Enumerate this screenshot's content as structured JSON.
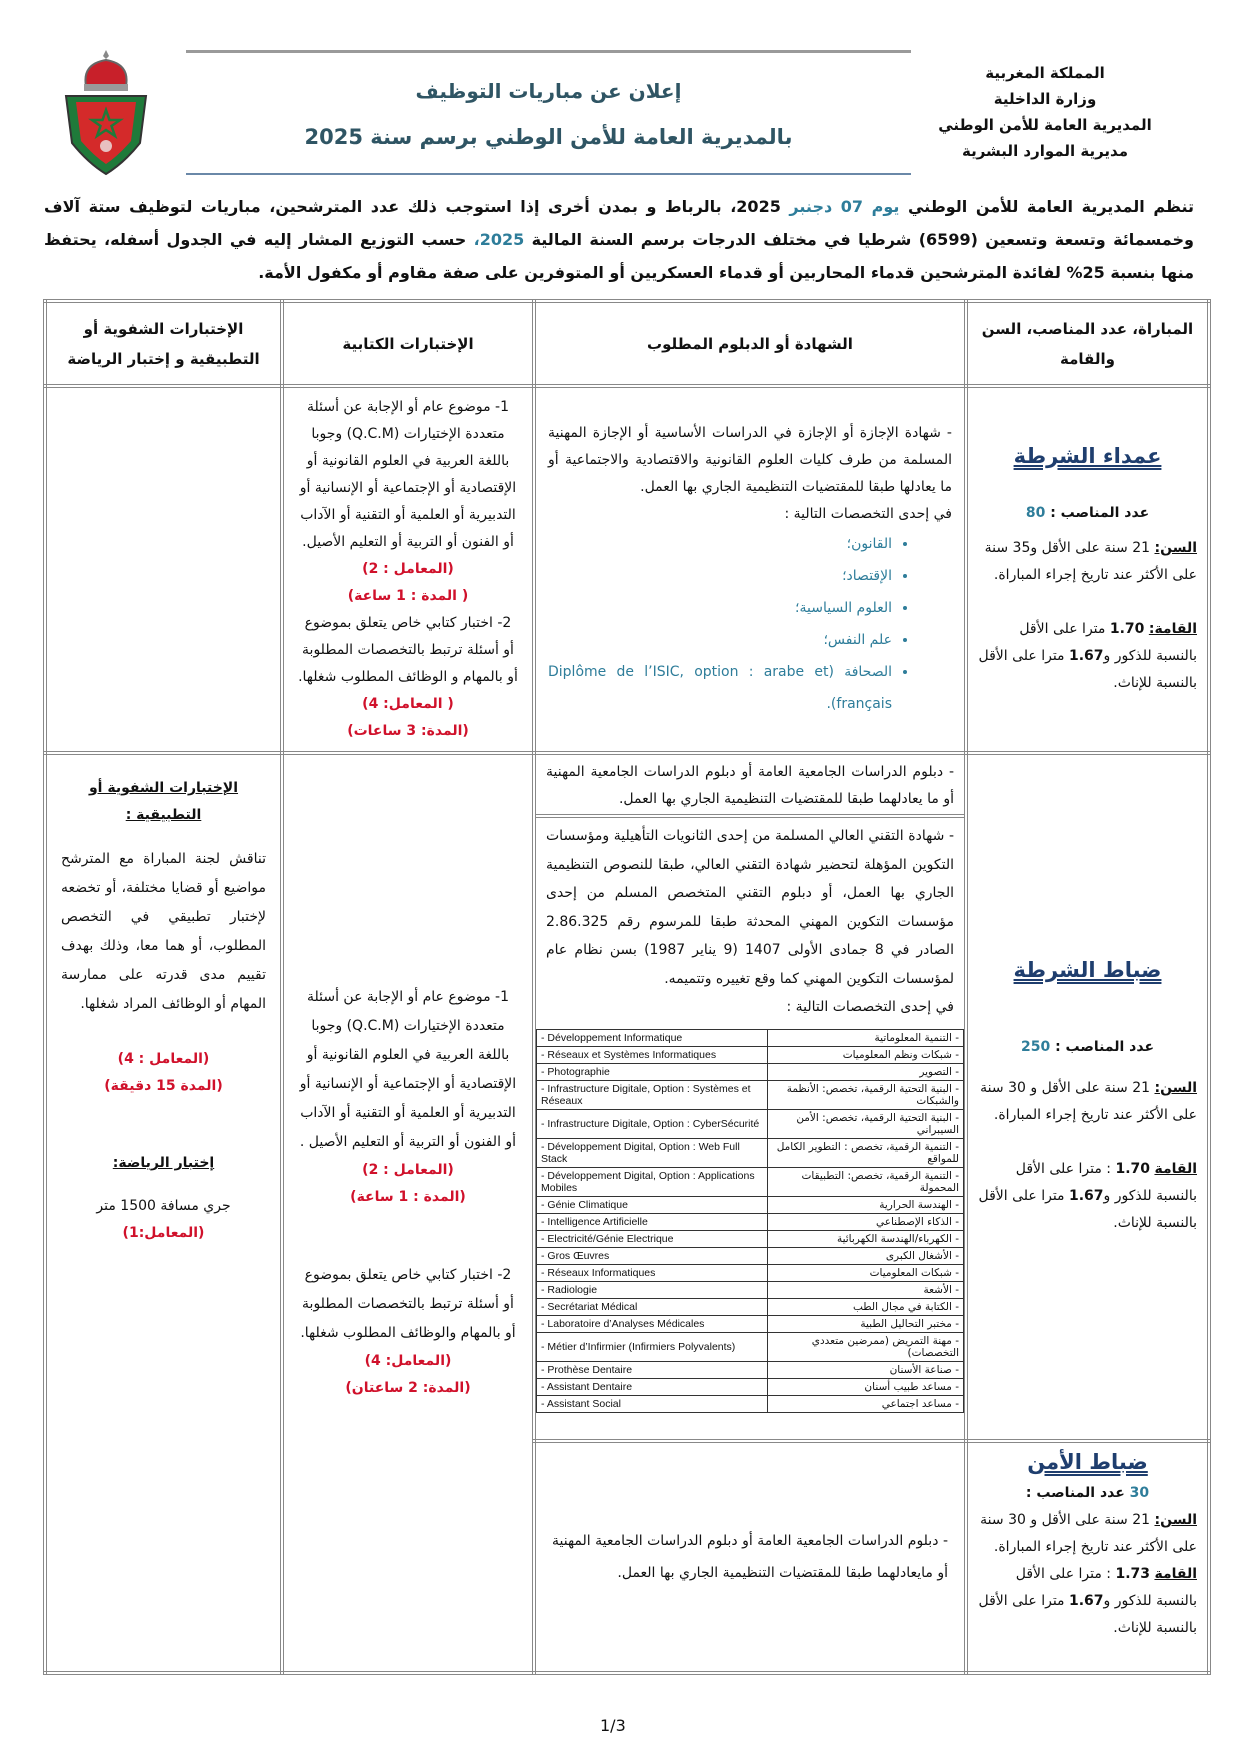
{
  "header": {
    "org_lines": [
      "المملكة المغربية",
      "وزارة الداخلية",
      "المديرية العامة للأمن الوطني",
      "مديرية الموارد البشرية"
    ],
    "title": "إعلان عن مباريات التوظيف",
    "subtitle": "بالمديرية العامة للأمن الوطني برسم سنة 2025"
  },
  "intro": {
    "p1": "تنظم المديرية العامة للأمن الوطني ",
    "date": "يوم 07 دجنبر",
    "p2": " 2025، بالرباط و بمدن أخرى إذا استوجب ذلك عدد المترشحين، مباريات لتوظيف ستة آلاف وخمسمائة وتسعة وتسعين (6599) شرطيا في مختلف الدرجات برسم السنة المالية ",
    "year": "2025،",
    "p3": " حسب التوزيع المشار إليه في الجدول أسفله، يحتفظ منها بنسبة 25% لفائدة المترشحين قدماء المحاربين أو قدماء العسكريين أو المتوفرين على صفة مقاوم أو مكفول الأمة."
  },
  "colors": {
    "title": "#2f5564",
    "accent_blue": "#2e7d9a",
    "red": "#d0112b",
    "navy": "#1f3e6e"
  },
  "table": {
    "headers": [
      "المباراة، عدد المناصب، السن والقامة",
      "الشهادة أو الدبلوم المطلوب",
      "الإختبارات الكتابية",
      "الإختبارات الشفوية أو التطبيقية و إختبار الرياضة"
    ],
    "rows": [
      {
        "rank": "عمداء الشرطة",
        "posts_label": "عدد المناصب :",
        "posts": "80",
        "age_label": "السن:",
        "age": " 21 سنة على الأقل و35 سنة على الأكثر عند تاريخ إجراء المباراة.",
        "height_label": "القامة:",
        "h_m": "1.70",
        "height_mid": " مترا على الأقل بالنسبة للذكور و",
        "h_f": "1.67",
        "height_end": " مترا على الأقل بالنسبة للإناث.",
        "diploma": "- شهادة الإجازة أو الإجازة في الدراسات الأساسية أو الإجازة المهنية المسلمة من طرف كليات العلوم القانونية والاقتصادية والاجتماعية أو ما يعادلها طبقا للمقتضيات التنظيمية الجاري بها العمل.",
        "spec_intro": "في إحدى التخصصات التالية :",
        "specialties": [
          "القانون؛",
          "الإقتصاد؛",
          "العلوم السياسية؛",
          "علم النفس؛",
          "الصحافة (Diplôme de l’ISIC, option : arabe et français)."
        ],
        "written": {
          "t1": "1- موضوع عام أو الإجابة عن أسئلة متعددة الإختيارات (Q.C.M) وجوبا باللغة العربية في العلوم القانونية أو الإقتصادية أو الإجتماعية أو الإنسانية أو التدبيرية أو العلمية أو التقنية أو الآداب أو الفنون أو التربية أو التعليم الأصيل.",
          "c1": "(المعامل : 2)",
          "d1": "( المدة : 1 ساعة)",
          "t2": "2- اختبار كتابي خاص يتعلق بموضوع أو أسئلة ترتبط بالتخصصات المطلوبة أو بالمهام و الوظائف المطلوب شغلها.",
          "c2": "( المعامل: 4)",
          "d2": "(المدة: 3 ساعات)"
        }
      },
      {
        "rank": "ضباط الشرطة",
        "posts_label": "عدد المناصب :",
        "posts": "250",
        "age_label": "السن:",
        "age": " 21 سنة على الأقل و 30 سنة على الأكثر عند تاريخ إجراء المباراة.",
        "height_label": "القامة",
        "h_m": "1.70",
        "height_mid": " : مترا على الأقل بالنسبة للذكور و",
        "h_f": "1.67",
        "height_end": " مترا على الأقل بالنسبة للإناث.",
        "diploma_a": "- دبلوم الدراسات الجامعية العامة أو دبلوم الدراسات الجامعية المهنية أو ما يعادلهما طبقا للمقتضيات التنظيمية الجاري بها العمل.",
        "diploma_b": "- شهادة التقني العالي المسلمة من إحدى الثانويات التأهيلية ومؤسسات التكوين المؤهلة لتحضير شهادة التقني العالي، طبقا للنصوص التنظيمية الجاري بها العمل، أو دبلوم التقني المتخصص المسلم من إحدى مؤسسات التكوين المهني المحدثة طبقا للمرسوم رقم 2.86.325 الصادر في 8 جمادى الأولى 1407 (9 يناير 1987) بسن نظام عام لمؤسسات التكوين المهني كما وقع تغييره وتتميمه.",
        "spec_intro": "في إحدى التخصصات التالية :",
        "specialties": [
          {
            "fr": "- Développement Informatique",
            "ar": "- التنمية المعلوماتية"
          },
          {
            "fr": "- Réseaux et Systèmes Informatiques",
            "ar": "- شبكات ونظم المعلوميات"
          },
          {
            "fr": "- Photographie",
            "ar": "- التصوير"
          },
          {
            "fr": "- Infrastructure Digitale, Option : Systèmes et Réseaux",
            "ar": "- البنية التحتية الرقمية، تخصص: الأنظمة والشبكات"
          },
          {
            "fr": "- Infrastructure Digitale, Option : CyberSécurité",
            "ar": "- البنية التحتية الرقمية، تخصص: الأمن السيبراني"
          },
          {
            "fr": "- Développement Digital, Option : Web Full Stack",
            "ar": "- التنمية الرقمية، تخصص : التطوير الكامل للمواقع"
          },
          {
            "fr": "- Développement Digital, Option : Applications Mobiles",
            "ar": "- التنمية الرقمية، تخصص: التطبيقات المحمولة"
          },
          {
            "fr": "- Génie Climatique",
            "ar": "- الهندسة الحرارية"
          },
          {
            "fr": "- Intelligence Artificielle",
            "ar": "- الذكاء الإصطناعي"
          },
          {
            "fr": "- Electricité/Génie Electrique",
            "ar": "- الكهرباء/الهندسة الكهربائية"
          },
          {
            "fr": "- Gros Œuvres",
            "ar": "- الأشغال الكبرى"
          },
          {
            "fr": "- Réseaux Informatiques",
            "ar": "- شبكات المعلوميات"
          },
          {
            "fr": "- Radiologie",
            "ar": "- الأشعة"
          },
          {
            "fr": "- Secrétariat Médical",
            "ar": "- الكتابة في مجال الطب"
          },
          {
            "fr": "- Laboratoire d’Analyses Médicales",
            "ar": "- مختبر التحاليل الطبية"
          },
          {
            "fr": "- Métier d’Infirmier (Infirmiers Polyvalents)",
            "ar": "- مهنة التمريض (ممرضين متعددي التخصصات)"
          },
          {
            "fr": "- Prothèse Dentaire",
            "ar": "- صناعة الأسنان"
          },
          {
            "fr": "- Assistant Dentaire",
            "ar": "- مساعد طبيب أسنان"
          },
          {
            "fr": "- Assistant Social",
            "ar": "- مساعد اجتماعي"
          }
        ],
        "written": {
          "t1": "1- موضوع عام أو الإجابة عن أسئلة متعددة الإختيارات (Q.C.M) وجوبا باللغة العربية في العلوم القانونية أو الإقتصادية أو الإجتماعية أو الإنسانية أو التدبيرية أو العلمية أو التقنية أو الآداب أو الفنون أو التربية أو التعليم الأصيل .",
          "c1": "(المعامل : 2)",
          "d1": "(المدة : 1 ساعة)",
          "t2": "2- اختبار كتابي خاص يتعلق بموضوع أو أسئلة ترتبط بالتخصصات المطلوبة أو بالمهام والوظائف المطلوب شغلها.",
          "c2": "(المعامل: 4)",
          "d2": "(المدة: 2 ساعتان)"
        },
        "oral": {
          "heading": "الإختبارات الشفوية أو التطبيقية :",
          "text": "تناقش لجنة المباراة مع المترشح مواضيع أو قضايا مختلفة، أو تخضعه لإختبار تطبيقي في التخصص المطلوب، أو هما معا، وذلك بهدف تقييم مدى قدرته على ممارسة المهام أو الوظائف المراد شغلها.",
          "coef": "(المعامل : 4)",
          "duration": "(المدة 15 دقيقة)",
          "sport_heading": "إختبار الرياضة:",
          "sport_text": "جري مسافة 1500 متر",
          "sport_coef": "(المعامل:1)"
        }
      },
      {
        "rank": "ضباط الأمن",
        "posts_label": "عدد المناصب :",
        "posts": "30",
        "age_label": "السن:",
        "age": " 21 سنة على الأقل و 30 سنة على الأكثر عند تاريخ إجراء المباراة.",
        "height_label": "القامة",
        "h_m": "1.73",
        "height_mid": " : مترا على الأقل بالنسبة للذكور و",
        "h_f": "1.67",
        "height_end": " مترا على الأقل بالنسبة للإناث.",
        "diploma": "- دبلوم الدراسات الجامعية العامة أو دبلوم الدراسات الجامعية المهنية أو مايعادلهما طبقا للمقتضيات التنظيمية الجاري بها العمل."
      }
    ]
  },
  "footer": {
    "page": "1/3"
  }
}
